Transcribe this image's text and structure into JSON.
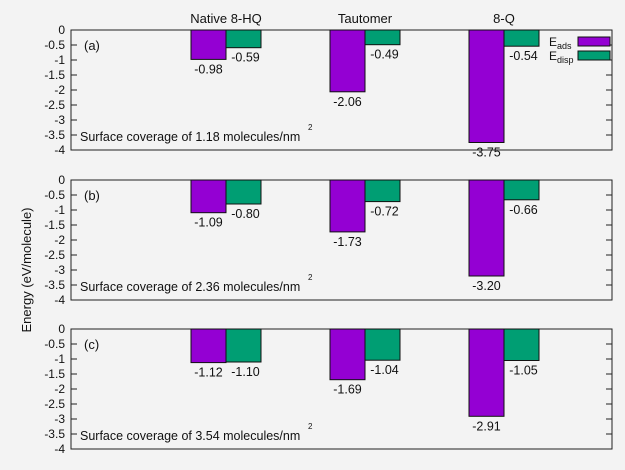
{
  "chart_data": {
    "type": "bar",
    "ylabel": "Energy (eV/molecule)",
    "categories": [
      "Native 8-HQ",
      "Tautomer",
      "8-Q"
    ],
    "series_legend": [
      {
        "key": "ads",
        "base": "E",
        "sub": "ads",
        "color": "#9400d3"
      },
      {
        "key": "disp",
        "base": "E",
        "sub": "disp",
        "color": "#009e73"
      }
    ],
    "ylim": [
      -4,
      0
    ],
    "yticks": [
      "0",
      "-0.5",
      "-1",
      "-1.5",
      "-2",
      "-2.5",
      "-3",
      "-3.5",
      "-4"
    ],
    "panels": [
      {
        "tag": "(a)",
        "coverage_text": "Surface coverage of 1.18 molecules/nm",
        "coverage_sup": "2",
        "ads": [
          -0.98,
          -2.06,
          -3.75
        ],
        "disp": [
          -0.59,
          -0.49,
          -0.54
        ],
        "ads_labels": [
          "-0.98",
          "-2.06",
          "-3.75"
        ],
        "disp_labels": [
          "-0.59",
          "-0.49",
          "-0.54"
        ]
      },
      {
        "tag": "(b)",
        "coverage_text": "Surface coverage of 2.36 molecules/nm",
        "coverage_sup": "2",
        "ads": [
          -1.09,
          -1.73,
          -3.2
        ],
        "disp": [
          -0.8,
          -0.72,
          -0.66
        ],
        "ads_labels": [
          "-1.09",
          "-1.73",
          "-3.20"
        ],
        "disp_labels": [
          "-0.80",
          "-0.72",
          "-0.66"
        ]
      },
      {
        "tag": "(c)",
        "coverage_text": "Surface coverage of 3.54 molecules/nm",
        "coverage_sup": "2",
        "ads": [
          -1.12,
          -1.69,
          -2.91
        ],
        "disp": [
          -1.1,
          -1.04,
          -1.05
        ],
        "ads_labels": [
          "-1.12",
          "-1.69",
          "-2.91"
        ],
        "disp_labels": [
          "-1.10",
          "-1.04",
          "-1.05"
        ]
      }
    ]
  }
}
